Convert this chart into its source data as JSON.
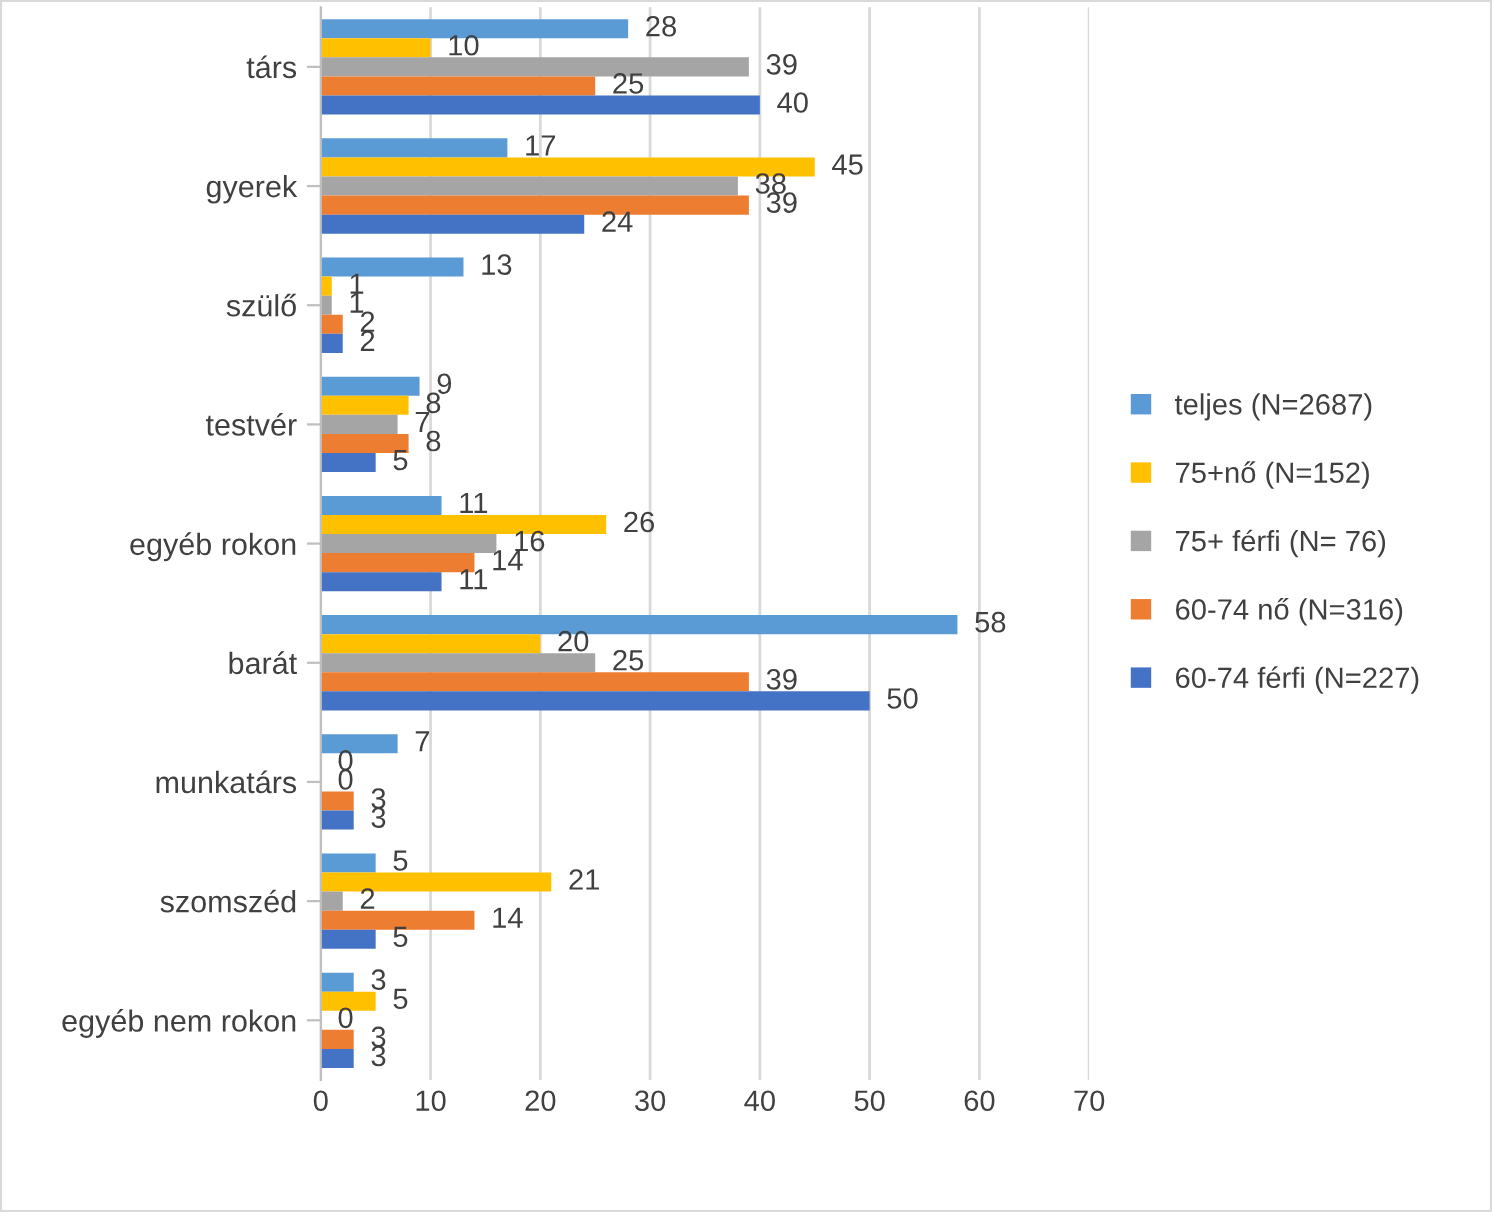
{
  "chart_data": {
    "type": "bar",
    "orientation": "horizontal",
    "categories": [
      "társ",
      "gyerek",
      "szülő",
      "testvér",
      "egyéb rokon",
      "barát",
      "munkatárs",
      "szomszéd",
      "egyéb nem rokon"
    ],
    "series": [
      {
        "name": "teljes (N=2687)",
        "color": "#5b9bd5",
        "values": [
          28,
          17,
          13,
          9,
          11,
          58,
          7,
          5,
          3
        ]
      },
      {
        "name": "75+nő (N=152)",
        "color": "#ffc000",
        "values": [
          10,
          45,
          1,
          8,
          26,
          20,
          0,
          21,
          5
        ]
      },
      {
        "name": "75+ férfi (N= 76)",
        "color": "#a5a5a5",
        "values": [
          39,
          38,
          1,
          7,
          16,
          25,
          0,
          2,
          0
        ]
      },
      {
        "name": "60-74 nő (N=316)",
        "color": "#ed7d31",
        "values": [
          25,
          39,
          2,
          8,
          14,
          39,
          3,
          14,
          3
        ]
      },
      {
        "name": "60-74 férfi (N=227)",
        "color": "#4472c4",
        "values": [
          40,
          24,
          2,
          5,
          11,
          50,
          3,
          5,
          3
        ]
      }
    ],
    "xlim": [
      0,
      70
    ],
    "xticks": [
      0,
      10,
      20,
      30,
      40,
      50,
      60,
      70
    ],
    "grid": "x",
    "legend": "right",
    "data_labels": true
  }
}
